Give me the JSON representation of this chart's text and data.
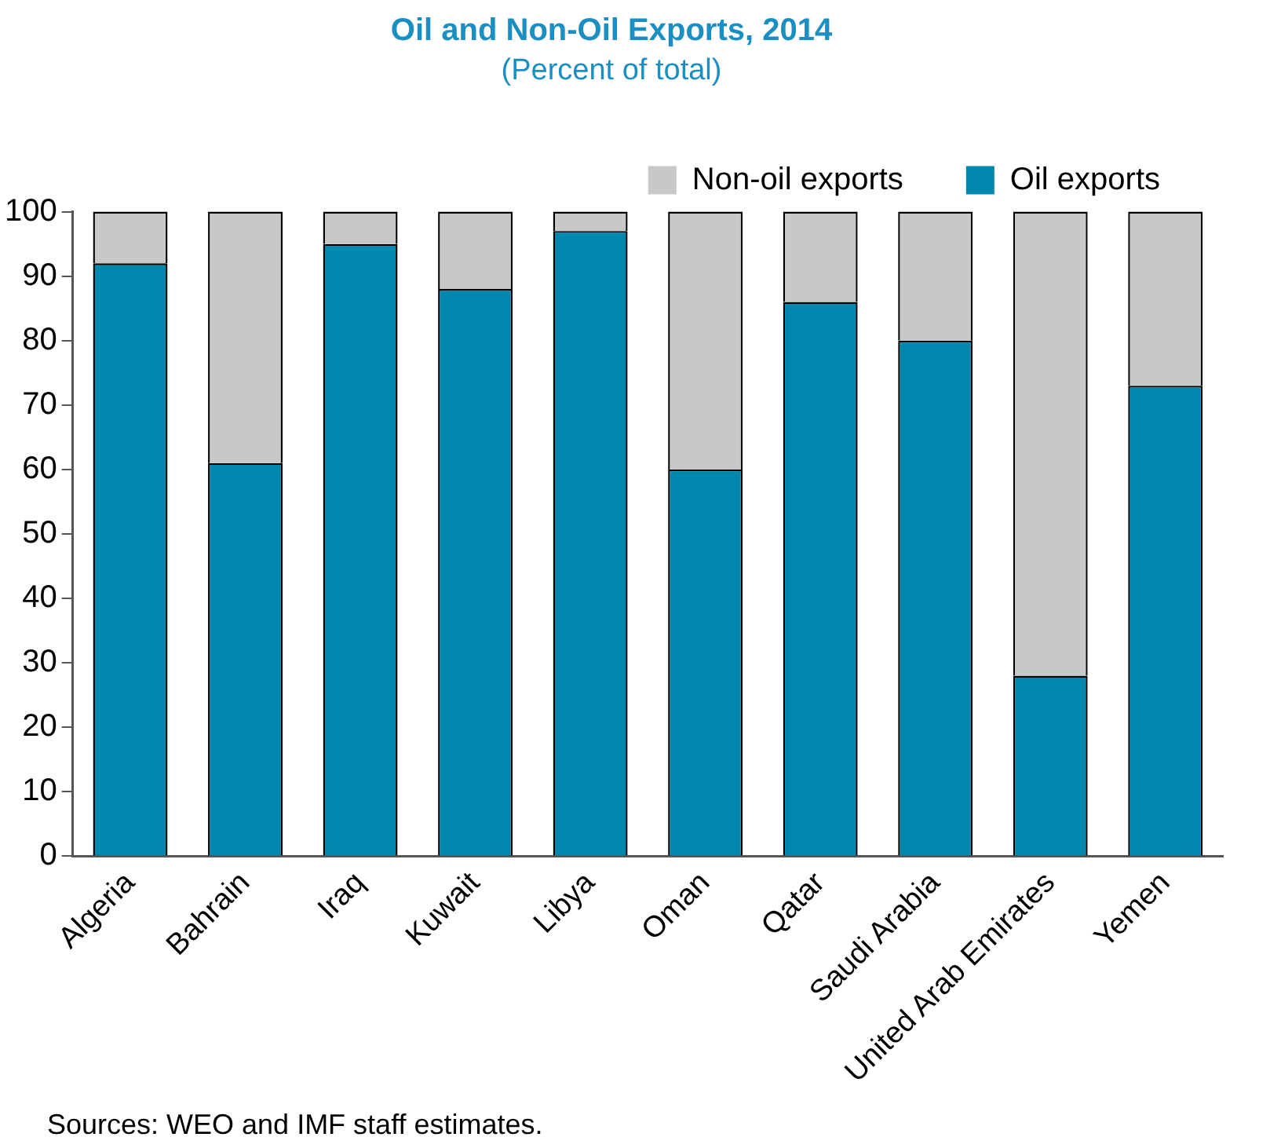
{
  "chart_data": {
    "type": "bar",
    "title": "Oil and Non-Oil Exports, 2014",
    "subtitle": "(Percent of total)",
    "categories": [
      "Algeria",
      "Bahrain",
      "Iraq",
      "Kuwait",
      "Libya",
      "Oman",
      "Qatar",
      "Saudi Arabia",
      "United Arab Emirates",
      "Yemen"
    ],
    "stacked": true,
    "series": [
      {
        "name": "Oil exports",
        "color": "#0087ae",
        "values": [
          92,
          61,
          95,
          88,
          97,
          60,
          86,
          80,
          28,
          73
        ]
      },
      {
        "name": "Non-oil exports",
        "color": "#c8c8c8",
        "values": [
          8,
          39,
          5,
          12,
          3,
          40,
          14,
          20,
          72,
          27
        ]
      }
    ],
    "ylim": [
      0,
      100
    ],
    "yticks": [
      0,
      10,
      20,
      30,
      40,
      50,
      60,
      70,
      80,
      90,
      100
    ],
    "grid": false,
    "legend": "top right",
    "annotations": [
      "Sources: WEO and IMF staff estimates."
    ]
  }
}
